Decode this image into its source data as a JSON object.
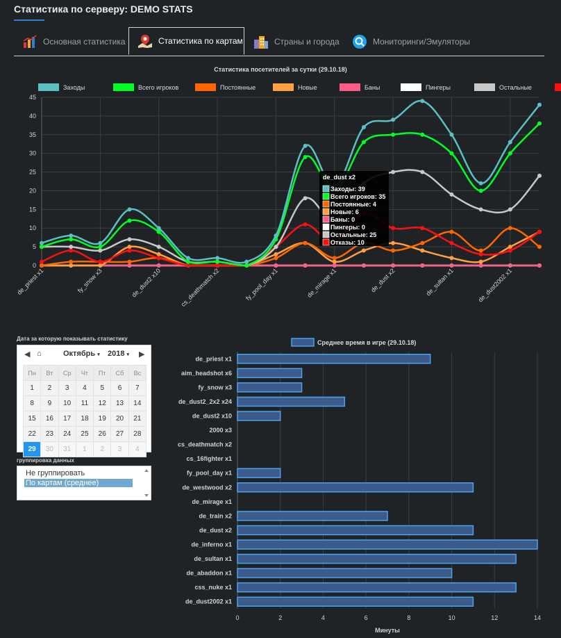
{
  "page": {
    "title": "Статистика по серверу: DEMO STATS"
  },
  "tabs": [
    {
      "label": "Основная статистика",
      "icon": "bar-chart-icon"
    },
    {
      "label": "Статистика по картам",
      "icon": "map-pin-icon"
    },
    {
      "label": "Страны и города",
      "icon": "city-icon"
    },
    {
      "label": "Мониторинги/Эмуляторы",
      "icon": "monitor-search-icon"
    }
  ],
  "colors": {
    "zahody": "#5bc0c4",
    "vsego": "#00ff22",
    "postoyannye": "#ff6600",
    "novye": "#ff9f40",
    "bany": "#ff5c8a",
    "pingery": "#ffffff",
    "ostalnye": "#c8c8c8",
    "otkazy": "#ff1010",
    "bar": "#3c5a8a",
    "barStroke": "#4aa3f0"
  },
  "chart_data": [
    {
      "type": "line",
      "title": "Статистика посетителей за сутки (29.10.18)",
      "categories": [
        "de_priest x1",
        "aim_headshot x6",
        "fy_snow x3",
        "de_dust2_2x2 x24",
        "de_dust2 x10",
        "2000 x3",
        "cs_deathmatch x2",
        "cs_16fighter x1",
        "fy_pool_day x1",
        "de_westwood x2",
        "de_mirage x1",
        "de_train x2",
        "de_dust x2",
        "de_inferno x1",
        "de_sultan x1",
        "de_abaddon x1",
        "css_nuke x1",
        "de_dust2002 x1"
      ],
      "x_tick_labels": [
        "de_priest x1",
        "fy_snow x3",
        "de_dust2 x10",
        "cs_deathmatch x2",
        "fy_pool_day x1",
        "de_mirage x1",
        "de_dust x2",
        "de_sultan x1",
        "de_dust2002 x1"
      ],
      "ylim": [
        0,
        45
      ],
      "yticks": [
        0,
        5,
        10,
        15,
        20,
        25,
        30,
        35,
        40,
        45
      ],
      "series": [
        {
          "name": "Заходы",
          "color": "#5bc0c4",
          "values": [
            6,
            8,
            6,
            15,
            10,
            2,
            2,
            1,
            8,
            32,
            21,
            37,
            39,
            44,
            35,
            22,
            33,
            43
          ]
        },
        {
          "name": "Всего игроков",
          "color": "#00ff22",
          "values": [
            5,
            7,
            5,
            12,
            9,
            1,
            1,
            0,
            7,
            29,
            20,
            33,
            35,
            35,
            30,
            20,
            30,
            38
          ]
        },
        {
          "name": "Постоянные",
          "color": "#ff6600",
          "values": [
            0,
            1,
            1,
            1,
            2,
            0,
            0,
            0,
            2,
            6,
            2,
            6,
            4,
            6,
            9,
            4,
            10,
            5
          ]
        },
        {
          "name": "Новые",
          "color": "#ff9f40",
          "values": [
            0,
            0,
            0,
            5,
            3,
            0,
            0,
            0,
            3,
            6,
            1,
            4,
            6,
            4,
            2,
            1,
            5,
            9
          ]
        },
        {
          "name": "Баны",
          "color": "#ff5c8a",
          "values": [
            0,
            0,
            0,
            0,
            0,
            0,
            0,
            0,
            0,
            0,
            0,
            0,
            0,
            0,
            0,
            0,
            0,
            0
          ]
        },
        {
          "name": "Пингеры",
          "color": "#ffffff",
          "values": [
            0,
            0,
            0,
            0,
            0,
            0,
            0,
            0,
            0,
            0,
            0,
            0,
            0,
            0,
            0,
            0,
            0,
            0
          ]
        },
        {
          "name": "Остальные",
          "color": "#c8c8c8",
          "values": [
            5,
            5,
            4,
            7,
            5,
            1,
            1,
            0,
            5,
            18,
            12,
            22,
            25,
            25,
            19,
            15,
            15,
            24
          ]
        },
        {
          "name": "Отказы",
          "color": "#ff1010",
          "values": [
            1,
            4,
            1,
            4,
            2,
            0,
            0,
            0,
            5,
            11,
            6,
            14,
            10,
            10,
            6,
            3,
            4,
            9
          ]
        }
      ],
      "tooltip": {
        "title": "de_dust x2",
        "lines": [
          {
            "label": "Заходы: 39",
            "color": "#5bc0c4"
          },
          {
            "label": "Всего игроков: 35",
            "color": "#00ff22"
          },
          {
            "label": "Постоянные: 4",
            "color": "#ff6600"
          },
          {
            "label": "Новые: 6",
            "color": "#ff9f40"
          },
          {
            "label": "Баны: 0",
            "color": "#ff5c8a"
          },
          {
            "label": "Пингеры: 0",
            "color": "#ffffff"
          },
          {
            "label": "Остальные: 25",
            "color": "#c8c8c8"
          },
          {
            "label": "Отказы: 10",
            "color": "#ff1010"
          }
        ]
      }
    },
    {
      "type": "bar",
      "orientation": "horizontal",
      "legend": "Среднее время в игре (29.10.18)",
      "xlabel": "Минуты",
      "xlim": [
        0,
        14
      ],
      "xticks": [
        0,
        2,
        4,
        6,
        8,
        10,
        12,
        14
      ],
      "categories": [
        "de_priest x1",
        "aim_headshot x6",
        "fy_snow x3",
        "de_dust2_2x2 x24",
        "de_dust2 x10",
        "2000 x3",
        "cs_deathmatch x2",
        "cs_16fighter x1",
        "fy_pool_day x1",
        "de_westwood x2",
        "de_mirage x1",
        "de_train x2",
        "de_dust x2",
        "de_inferno x1",
        "de_sultan x1",
        "de_abaddon x1",
        "css_nuke x1",
        "de_dust2002 x1"
      ],
      "values": [
        9,
        3,
        3,
        5,
        2,
        0,
        0,
        0,
        2,
        11,
        0,
        7,
        11,
        14,
        13,
        10,
        13,
        11
      ]
    }
  ],
  "calendar": {
    "label": "Дата за которую показывать статистику",
    "month": "Октябрь",
    "year": "2018",
    "weekdays": [
      "Пн",
      "Вт",
      "Ср",
      "Чт",
      "Пт",
      "Сб",
      "Вс"
    ],
    "weeks": [
      [
        "1",
        "2",
        "3",
        "4",
        "5",
        "6",
        "7"
      ],
      [
        "8",
        "9",
        "10",
        "11",
        "12",
        "13",
        "14"
      ],
      [
        "15",
        "16",
        "17",
        "18",
        "19",
        "20",
        "21"
      ],
      [
        "22",
        "23",
        "24",
        "25",
        "26",
        "27",
        "28"
      ],
      [
        "29",
        "30",
        "31",
        "1",
        "2",
        "3",
        "4"
      ]
    ],
    "selected": "29"
  },
  "grouping": {
    "label": "группировка данных",
    "options": [
      "Не группировать",
      "По картам (среднее)"
    ],
    "selected": "По картам (среднее)"
  }
}
